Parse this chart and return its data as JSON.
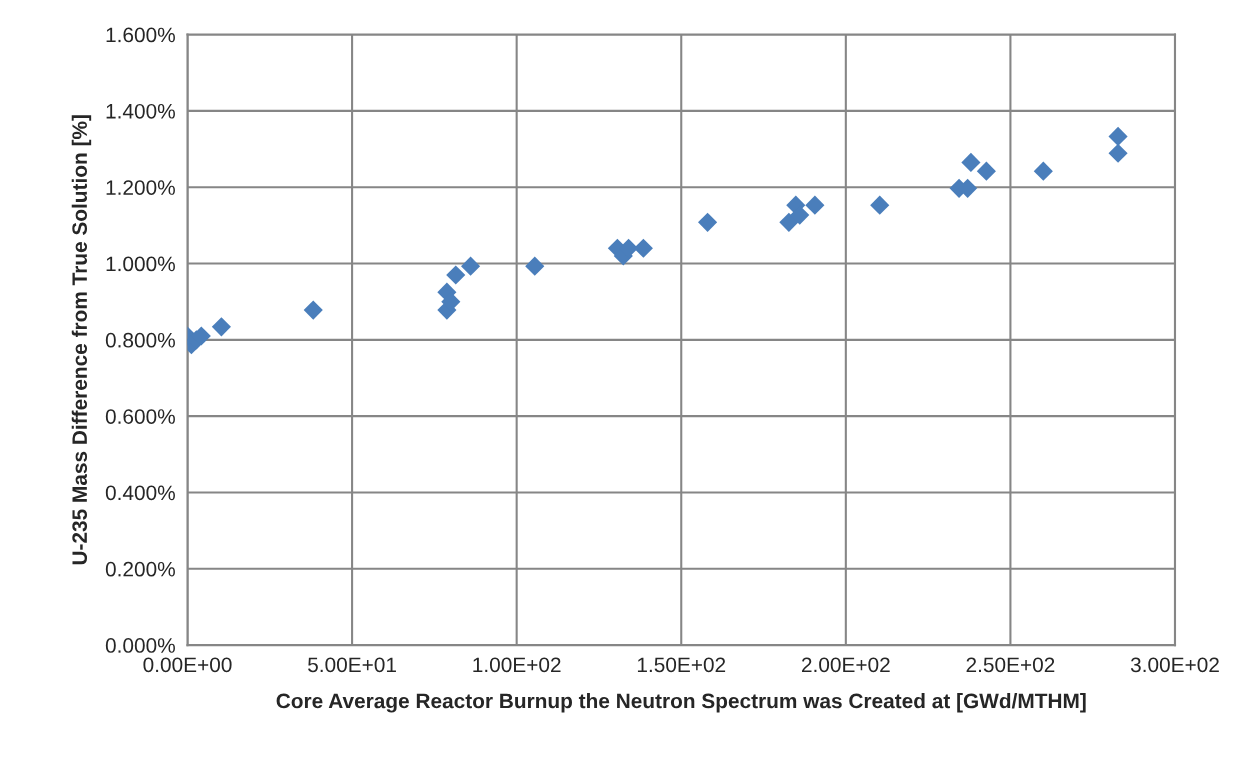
{
  "chart_data": {
    "type": "scatter",
    "xlabel": "Core Average Reactor Burnup the Neutron Spectrum was Created at [GWd/MTHM]",
    "ylabel": "U-235 Mass Difference from True Solution [%]",
    "x": [
      0,
      1.2,
      2.7,
      4.2,
      10.3,
      38.2,
      78.8,
      78.8,
      80,
      81.5,
      86,
      105.5,
      130.6,
      132.4,
      134,
      138.5,
      158,
      182.7,
      184.8,
      186,
      190.6,
      210.3,
      234.4,
      237,
      238,
      242.7,
      260,
      282.7,
      282.7
    ],
    "series": [
      {
        "color": "#4a7ebb",
        "values": [
          0.81,
          0.787,
          0.8,
          0.81,
          0.834,
          0.878,
          0.878,
          0.925,
          0.9,
          0.97,
          0.993,
          0.993,
          1.04,
          1.02,
          1.04,
          1.04,
          1.108,
          1.108,
          1.153,
          1.127,
          1.153,
          1.153,
          1.197,
          1.197,
          1.265,
          1.242,
          1.242,
          1.333,
          1.289
        ]
      }
    ],
    "xlim": [
      0,
      300
    ],
    "xticks": [
      {
        "value": 0,
        "label": "0.00E+00"
      },
      {
        "value": 50,
        "label": "5.00E+01"
      },
      {
        "value": 100,
        "label": "1.00E+02"
      },
      {
        "value": 150,
        "label": "1.50E+02"
      },
      {
        "value": 200,
        "label": "2.00E+02"
      },
      {
        "value": 250,
        "label": "2.50E+02"
      },
      {
        "value": 300,
        "label": "3.00E+02"
      }
    ],
    "ylim": [
      0,
      1.6
    ],
    "yticks": [
      {
        "value": 0,
        "label": "0.000%"
      },
      {
        "value": 0.2,
        "label": "0.200%"
      },
      {
        "value": 0.4,
        "label": "0.400%"
      },
      {
        "value": 0.6,
        "label": "0.600%"
      },
      {
        "value": 0.8,
        "label": "0.800%"
      },
      {
        "value": 1.0,
        "label": "1.000%"
      },
      {
        "value": 1.2,
        "label": "1.200%"
      },
      {
        "value": 1.4,
        "label": "1.400%"
      },
      {
        "value": 1.6,
        "label": "1.600%"
      }
    ],
    "grid": true,
    "marker": "diamond",
    "legend": false
  }
}
